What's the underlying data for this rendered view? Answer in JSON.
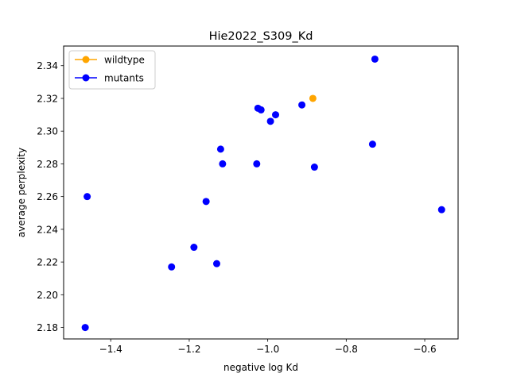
{
  "chart_data": {
    "type": "scatter",
    "title": "Hie2022_S309_Kd",
    "xlabel": "negative log Kd",
    "ylabel": "average perplexity",
    "xlim": [
      -1.52,
      -0.515
    ],
    "ylim": [
      2.173,
      2.352
    ],
    "xticks": [
      -1.4,
      -1.2,
      -1.0,
      -0.8,
      -0.6
    ],
    "xtick_labels": [
      "−1.4",
      "−1.2",
      "−1.0",
      "−0.8",
      "−0.6"
    ],
    "yticks": [
      2.18,
      2.2,
      2.22,
      2.24,
      2.26,
      2.28,
      2.3,
      2.32,
      2.34
    ],
    "ytick_labels": [
      "2.18",
      "2.20",
      "2.22",
      "2.24",
      "2.26",
      "2.28",
      "2.30",
      "2.32",
      "2.34"
    ],
    "grid": false,
    "legend_position": "top-left",
    "series": [
      {
        "name": "wildtype",
        "color": "#ffa500",
        "points": [
          {
            "x": -0.885,
            "y": 2.32
          }
        ]
      },
      {
        "name": "mutants",
        "color": "#0000ff",
        "points": [
          {
            "x": -0.727,
            "y": 2.344
          },
          {
            "x": -1.025,
            "y": 2.314
          },
          {
            "x": -1.017,
            "y": 2.313
          },
          {
            "x": -0.913,
            "y": 2.316
          },
          {
            "x": -0.98,
            "y": 2.31
          },
          {
            "x": -0.993,
            "y": 2.306
          },
          {
            "x": -0.733,
            "y": 2.292
          },
          {
            "x": -1.12,
            "y": 2.289
          },
          {
            "x": -1.115,
            "y": 2.28
          },
          {
            "x": -1.028,
            "y": 2.28
          },
          {
            "x": -0.881,
            "y": 2.278
          },
          {
            "x": -1.46,
            "y": 2.26
          },
          {
            "x": -1.157,
            "y": 2.257
          },
          {
            "x": -0.557,
            "y": 2.252
          },
          {
            "x": -1.188,
            "y": 2.229
          },
          {
            "x": -1.13,
            "y": 2.219
          },
          {
            "x": -1.245,
            "y": 2.217
          },
          {
            "x": -1.465,
            "y": 2.18
          }
        ]
      }
    ]
  }
}
